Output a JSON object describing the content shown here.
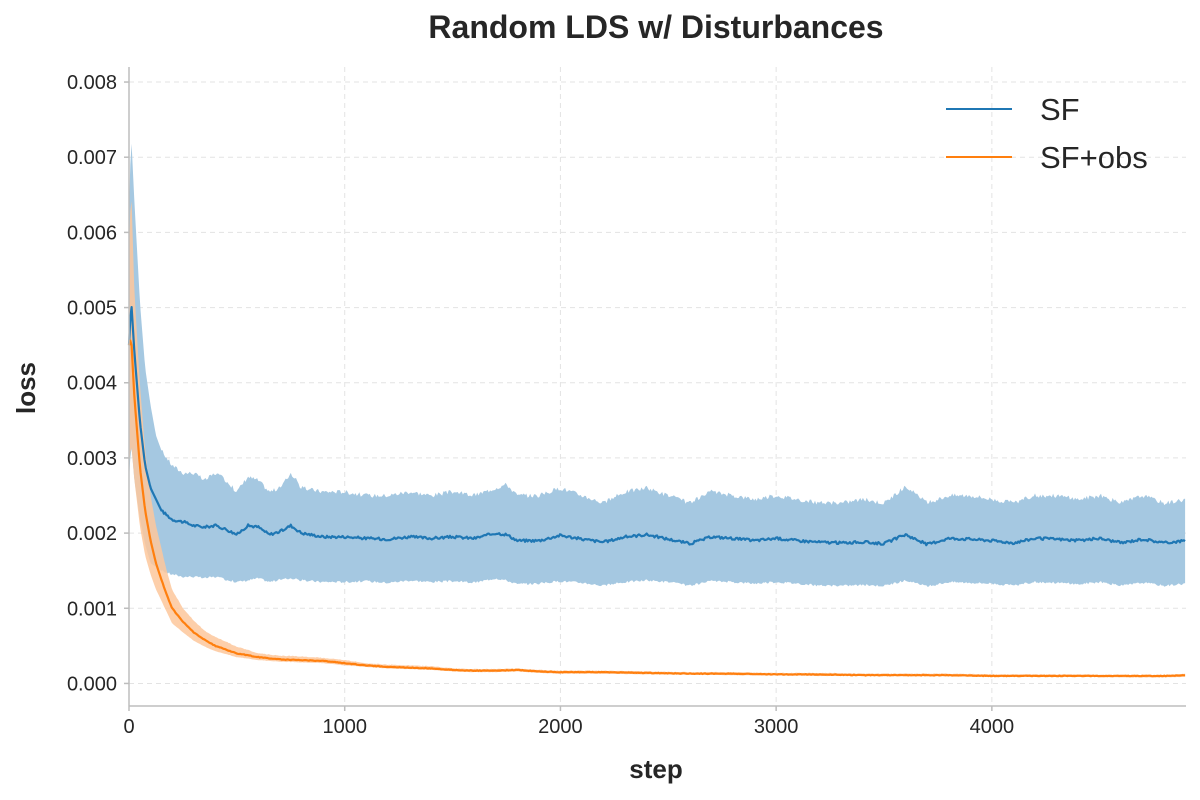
{
  "chart_data": {
    "type": "line",
    "title": "Random LDS w/ Disturbances",
    "xlabel": "step",
    "ylabel": "loss",
    "xlim": [
      0,
      4900
    ],
    "ylim": [
      -0.0003,
      0.0082
    ],
    "xticks": [
      0,
      1000,
      2000,
      3000,
      4000
    ],
    "xtick_labels": [
      "0",
      "1000",
      "2000",
      "3000",
      "4000"
    ],
    "yticks": [
      0.0,
      0.001,
      0.002,
      0.003,
      0.004,
      0.005,
      0.006,
      0.007,
      0.008
    ],
    "ytick_labels": [
      "0.000",
      "0.001",
      "0.002",
      "0.003",
      "0.004",
      "0.005",
      "0.006",
      "0.007",
      "0.008"
    ],
    "grid": true,
    "legend_position": "top-right",
    "series": [
      {
        "name": "SF",
        "color": "#1f77b4",
        "band_color": "#a5c8e1",
        "x": [
          0,
          10,
          25,
          50,
          75,
          100,
          125,
          150,
          200,
          250,
          300,
          350,
          400,
          450,
          500,
          550,
          600,
          650,
          700,
          750,
          800,
          900,
          1000,
          1100,
          1200,
          1300,
          1400,
          1500,
          1600,
          1700,
          1750,
          1800,
          1900,
          2000,
          2100,
          2200,
          2300,
          2400,
          2500,
          2600,
          2700,
          2800,
          2900,
          3000,
          3100,
          3200,
          3300,
          3400,
          3500,
          3600,
          3700,
          3800,
          3900,
          4000,
          4100,
          4200,
          4300,
          4400,
          4500,
          4600,
          4700,
          4800,
          4900
        ],
        "mean": [
          0.0045,
          0.0051,
          0.0044,
          0.0035,
          0.0029,
          0.0026,
          0.00245,
          0.0023,
          0.00218,
          0.00215,
          0.0021,
          0.00208,
          0.0021,
          0.00205,
          0.00198,
          0.0021,
          0.00208,
          0.00198,
          0.00202,
          0.0021,
          0.002,
          0.00195,
          0.00195,
          0.00193,
          0.00192,
          0.00195,
          0.00193,
          0.00195,
          0.00193,
          0.002,
          0.00198,
          0.0019,
          0.0019,
          0.00197,
          0.00192,
          0.00188,
          0.00195,
          0.00198,
          0.00192,
          0.00186,
          0.00195,
          0.00193,
          0.0019,
          0.00193,
          0.0019,
          0.00188,
          0.00187,
          0.00188,
          0.00186,
          0.00198,
          0.00185,
          0.00193,
          0.00192,
          0.0019,
          0.00187,
          0.00193,
          0.00192,
          0.0019,
          0.00193,
          0.00187,
          0.00192,
          0.00187,
          0.0019
        ],
        "lower": [
          0.0027,
          0.0032,
          0.0027,
          0.0022,
          0.00185,
          0.0016,
          0.00155,
          0.0015,
          0.00145,
          0.00142,
          0.00142,
          0.0014,
          0.00142,
          0.00138,
          0.00135,
          0.00137,
          0.0014,
          0.00135,
          0.00138,
          0.0014,
          0.00137,
          0.00135,
          0.00135,
          0.00136,
          0.00134,
          0.00137,
          0.00135,
          0.00136,
          0.00134,
          0.0014,
          0.00137,
          0.00132,
          0.00133,
          0.00136,
          0.00134,
          0.0013,
          0.00135,
          0.00137,
          0.00135,
          0.0013,
          0.00136,
          0.00135,
          0.00133,
          0.00135,
          0.00133,
          0.0013,
          0.0013,
          0.00131,
          0.0013,
          0.00137,
          0.00129,
          0.00135,
          0.00134,
          0.00133,
          0.0013,
          0.00135,
          0.00134,
          0.00132,
          0.00135,
          0.0013,
          0.00134,
          0.0013,
          0.00133
        ],
        "upper": [
          0.0063,
          0.0073,
          0.0064,
          0.0051,
          0.0042,
          0.0037,
          0.0033,
          0.0031,
          0.0029,
          0.0028,
          0.0028,
          0.0027,
          0.0028,
          0.0027,
          0.00255,
          0.00275,
          0.0027,
          0.00255,
          0.0026,
          0.0028,
          0.0026,
          0.00255,
          0.00255,
          0.0025,
          0.0025,
          0.00255,
          0.0025,
          0.00255,
          0.0025,
          0.0026,
          0.00265,
          0.0025,
          0.0025,
          0.0026,
          0.0025,
          0.0024,
          0.00255,
          0.0026,
          0.0025,
          0.0024,
          0.00255,
          0.0025,
          0.00245,
          0.0025,
          0.00245,
          0.0024,
          0.0024,
          0.00245,
          0.0024,
          0.00262,
          0.0024,
          0.0025,
          0.0025,
          0.00245,
          0.0024,
          0.0025,
          0.0025,
          0.00245,
          0.0025,
          0.0024,
          0.0025,
          0.0024,
          0.00245
        ]
      },
      {
        "name": "SF+obs",
        "color": "#ff7f0e",
        "band_color": "#fdc79b",
        "x": [
          0,
          10,
          25,
          50,
          75,
          100,
          125,
          150,
          175,
          200,
          250,
          300,
          350,
          400,
          500,
          600,
          700,
          800,
          900,
          1000,
          1100,
          1200,
          1300,
          1400,
          1500,
          1600,
          1700,
          1800,
          1900,
          2000,
          2200,
          2400,
          2600,
          2800,
          3000,
          3200,
          3400,
          3600,
          3800,
          4000,
          4200,
          4400,
          4600,
          4800,
          4900
        ],
        "mean": [
          0.0045,
          0.0046,
          0.0038,
          0.0029,
          0.0023,
          0.0019,
          0.0016,
          0.00138,
          0.00118,
          0.001,
          0.00082,
          0.00068,
          0.00058,
          0.0005,
          0.0004,
          0.00035,
          0.00032,
          0.00031,
          0.0003,
          0.00027,
          0.00024,
          0.00022,
          0.00021,
          0.0002,
          0.00018,
          0.00017,
          0.00017,
          0.00018,
          0.00016,
          0.00015,
          0.00015,
          0.00014,
          0.00013,
          0.00013,
          0.00012,
          0.00012,
          0.00011,
          0.00011,
          0.00011,
          0.0001,
          0.0001,
          0.0001,
          0.0001,
          0.0001,
          0.00011
        ],
        "lower": [
          0.0029,
          0.0032,
          0.0027,
          0.0021,
          0.0017,
          0.00145,
          0.00125,
          0.0011,
          0.00095,
          0.0008,
          0.00068,
          0.00057,
          0.00049,
          0.00043,
          0.00035,
          0.00031,
          0.00029,
          0.00028,
          0.00027,
          0.00024,
          0.00022,
          0.0002,
          0.00019,
          0.00018,
          0.00016,
          0.00015,
          0.00015,
          0.00016,
          0.00014,
          0.00013,
          0.00013,
          0.00012,
          0.00012,
          0.00011,
          0.00011,
          0.0001,
          0.0001,
          0.0001,
          0.0001,
          9e-05,
          9e-05,
          9e-05,
          8e-05,
          8e-05,
          9e-05
        ],
        "upper": [
          0.0058,
          0.0066,
          0.0052,
          0.004,
          0.0031,
          0.0025,
          0.0021,
          0.0018,
          0.0015,
          0.00125,
          0.001,
          0.00084,
          0.0007,
          0.00062,
          0.00049,
          0.0004,
          0.00037,
          0.00036,
          0.00034,
          0.00031,
          0.00027,
          0.00025,
          0.00024,
          0.00023,
          0.0002,
          0.00019,
          0.00019,
          0.0002,
          0.00018,
          0.00017,
          0.00017,
          0.00016,
          0.00015,
          0.00015,
          0.00014,
          0.00014,
          0.00013,
          0.00013,
          0.00013,
          0.00012,
          0.00012,
          0.00012,
          0.00011,
          0.00011,
          0.00013
        ]
      }
    ]
  }
}
